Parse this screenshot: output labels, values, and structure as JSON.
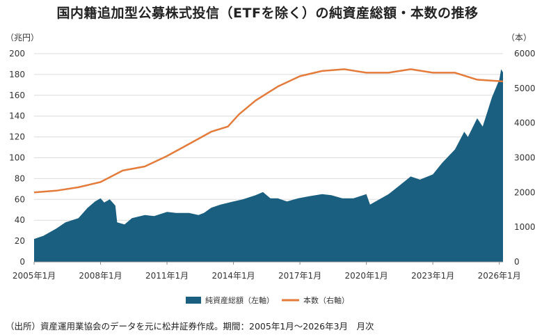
{
  "colors": {
    "area": "#1a5f80",
    "line": "#e47b3a",
    "axis": "#888888"
  },
  "source": "（出所）資産運用業協会のデータを元に松井証券作成。期間：2005年1月～2026年3月　月次",
  "chart_data": {
    "type": "area+line",
    "title": "国内籍追加型公募株式投信（ETFを除く）の純資産総額・本数の推移",
    "y_left_unit": "（兆円）",
    "y_right_unit": "（本）",
    "ylim_left": [
      0,
      200
    ],
    "ylim_right": [
      0,
      6000
    ],
    "y_left_ticks": [
      "0",
      "20",
      "40",
      "60",
      "80",
      "100",
      "120",
      "140",
      "160",
      "180",
      "200"
    ],
    "y_right_ticks": [
      "0",
      "1000",
      "2000",
      "3000",
      "4000",
      "5000",
      "6000"
    ],
    "x_ticks": [
      "2005年1月",
      "2008年1月",
      "2011年1月",
      "2014年1月",
      "2017年1月",
      "2020年1月",
      "2023年1月",
      "2026年1月"
    ],
    "x_range": [
      "2005-01",
      "2026-03"
    ],
    "grid": "horizontal",
    "legend_position": "bottom",
    "series": [
      {
        "name": "純資産総額（左軸）",
        "type": "area",
        "axis": "left",
        "points": [
          [
            "2005-01",
            22
          ],
          [
            "2005-06",
            25
          ],
          [
            "2006-01",
            32
          ],
          [
            "2006-06",
            38
          ],
          [
            "2007-01",
            42
          ],
          [
            "2007-06",
            52
          ],
          [
            "2007-10",
            58
          ],
          [
            "2008-01",
            61
          ],
          [
            "2008-03",
            57
          ],
          [
            "2008-06",
            60
          ],
          [
            "2008-09",
            54
          ],
          [
            "2008-10",
            38
          ],
          [
            "2009-02",
            36
          ],
          [
            "2009-06",
            42
          ],
          [
            "2010-01",
            45
          ],
          [
            "2010-06",
            44
          ],
          [
            "2011-01",
            48
          ],
          [
            "2011-06",
            47
          ],
          [
            "2012-01",
            47
          ],
          [
            "2012-06",
            45
          ],
          [
            "2012-09",
            47
          ],
          [
            "2013-01",
            52
          ],
          [
            "2013-06",
            55
          ],
          [
            "2014-01",
            58
          ],
          [
            "2014-06",
            60
          ],
          [
            "2015-01",
            64
          ],
          [
            "2015-05",
            67
          ],
          [
            "2015-09",
            61
          ],
          [
            "2016-01",
            61
          ],
          [
            "2016-06",
            58
          ],
          [
            "2016-12",
            61
          ],
          [
            "2017-06",
            63
          ],
          [
            "2018-01",
            65
          ],
          [
            "2018-06",
            64
          ],
          [
            "2018-12",
            61
          ],
          [
            "2019-06",
            61
          ],
          [
            "2020-01",
            65
          ],
          [
            "2020-03",
            55
          ],
          [
            "2020-09",
            61
          ],
          [
            "2021-01",
            65
          ],
          [
            "2021-06",
            72
          ],
          [
            "2022-01",
            82
          ],
          [
            "2022-06",
            79
          ],
          [
            "2023-01",
            84
          ],
          [
            "2023-06",
            95
          ],
          [
            "2024-01",
            108
          ],
          [
            "2024-06",
            125
          ],
          [
            "2024-08",
            120
          ],
          [
            "2025-01",
            138
          ],
          [
            "2025-04",
            130
          ],
          [
            "2025-09",
            158
          ],
          [
            "2026-01",
            175
          ],
          [
            "2026-02",
            185
          ],
          [
            "2026-03",
            182
          ]
        ]
      },
      {
        "name": "本数（右軸）",
        "type": "line",
        "axis": "right",
        "points": [
          [
            "2005-01",
            2000
          ],
          [
            "2006-01",
            2050
          ],
          [
            "2007-01",
            2150
          ],
          [
            "2008-01",
            2300
          ],
          [
            "2009-01",
            2630
          ],
          [
            "2010-01",
            2750
          ],
          [
            "2011-01",
            3050
          ],
          [
            "2012-01",
            3400
          ],
          [
            "2013-01",
            3750
          ],
          [
            "2013-10",
            3900
          ],
          [
            "2014-04",
            4250
          ],
          [
            "2015-01",
            4650
          ],
          [
            "2016-01",
            5050
          ],
          [
            "2017-01",
            5350
          ],
          [
            "2018-01",
            5500
          ],
          [
            "2019-01",
            5550
          ],
          [
            "2020-01",
            5450
          ],
          [
            "2021-01",
            5450
          ],
          [
            "2022-01",
            5550
          ],
          [
            "2023-01",
            5450
          ],
          [
            "2024-01",
            5450
          ],
          [
            "2025-01",
            5250
          ],
          [
            "2026-03",
            5200
          ]
        ]
      }
    ]
  }
}
